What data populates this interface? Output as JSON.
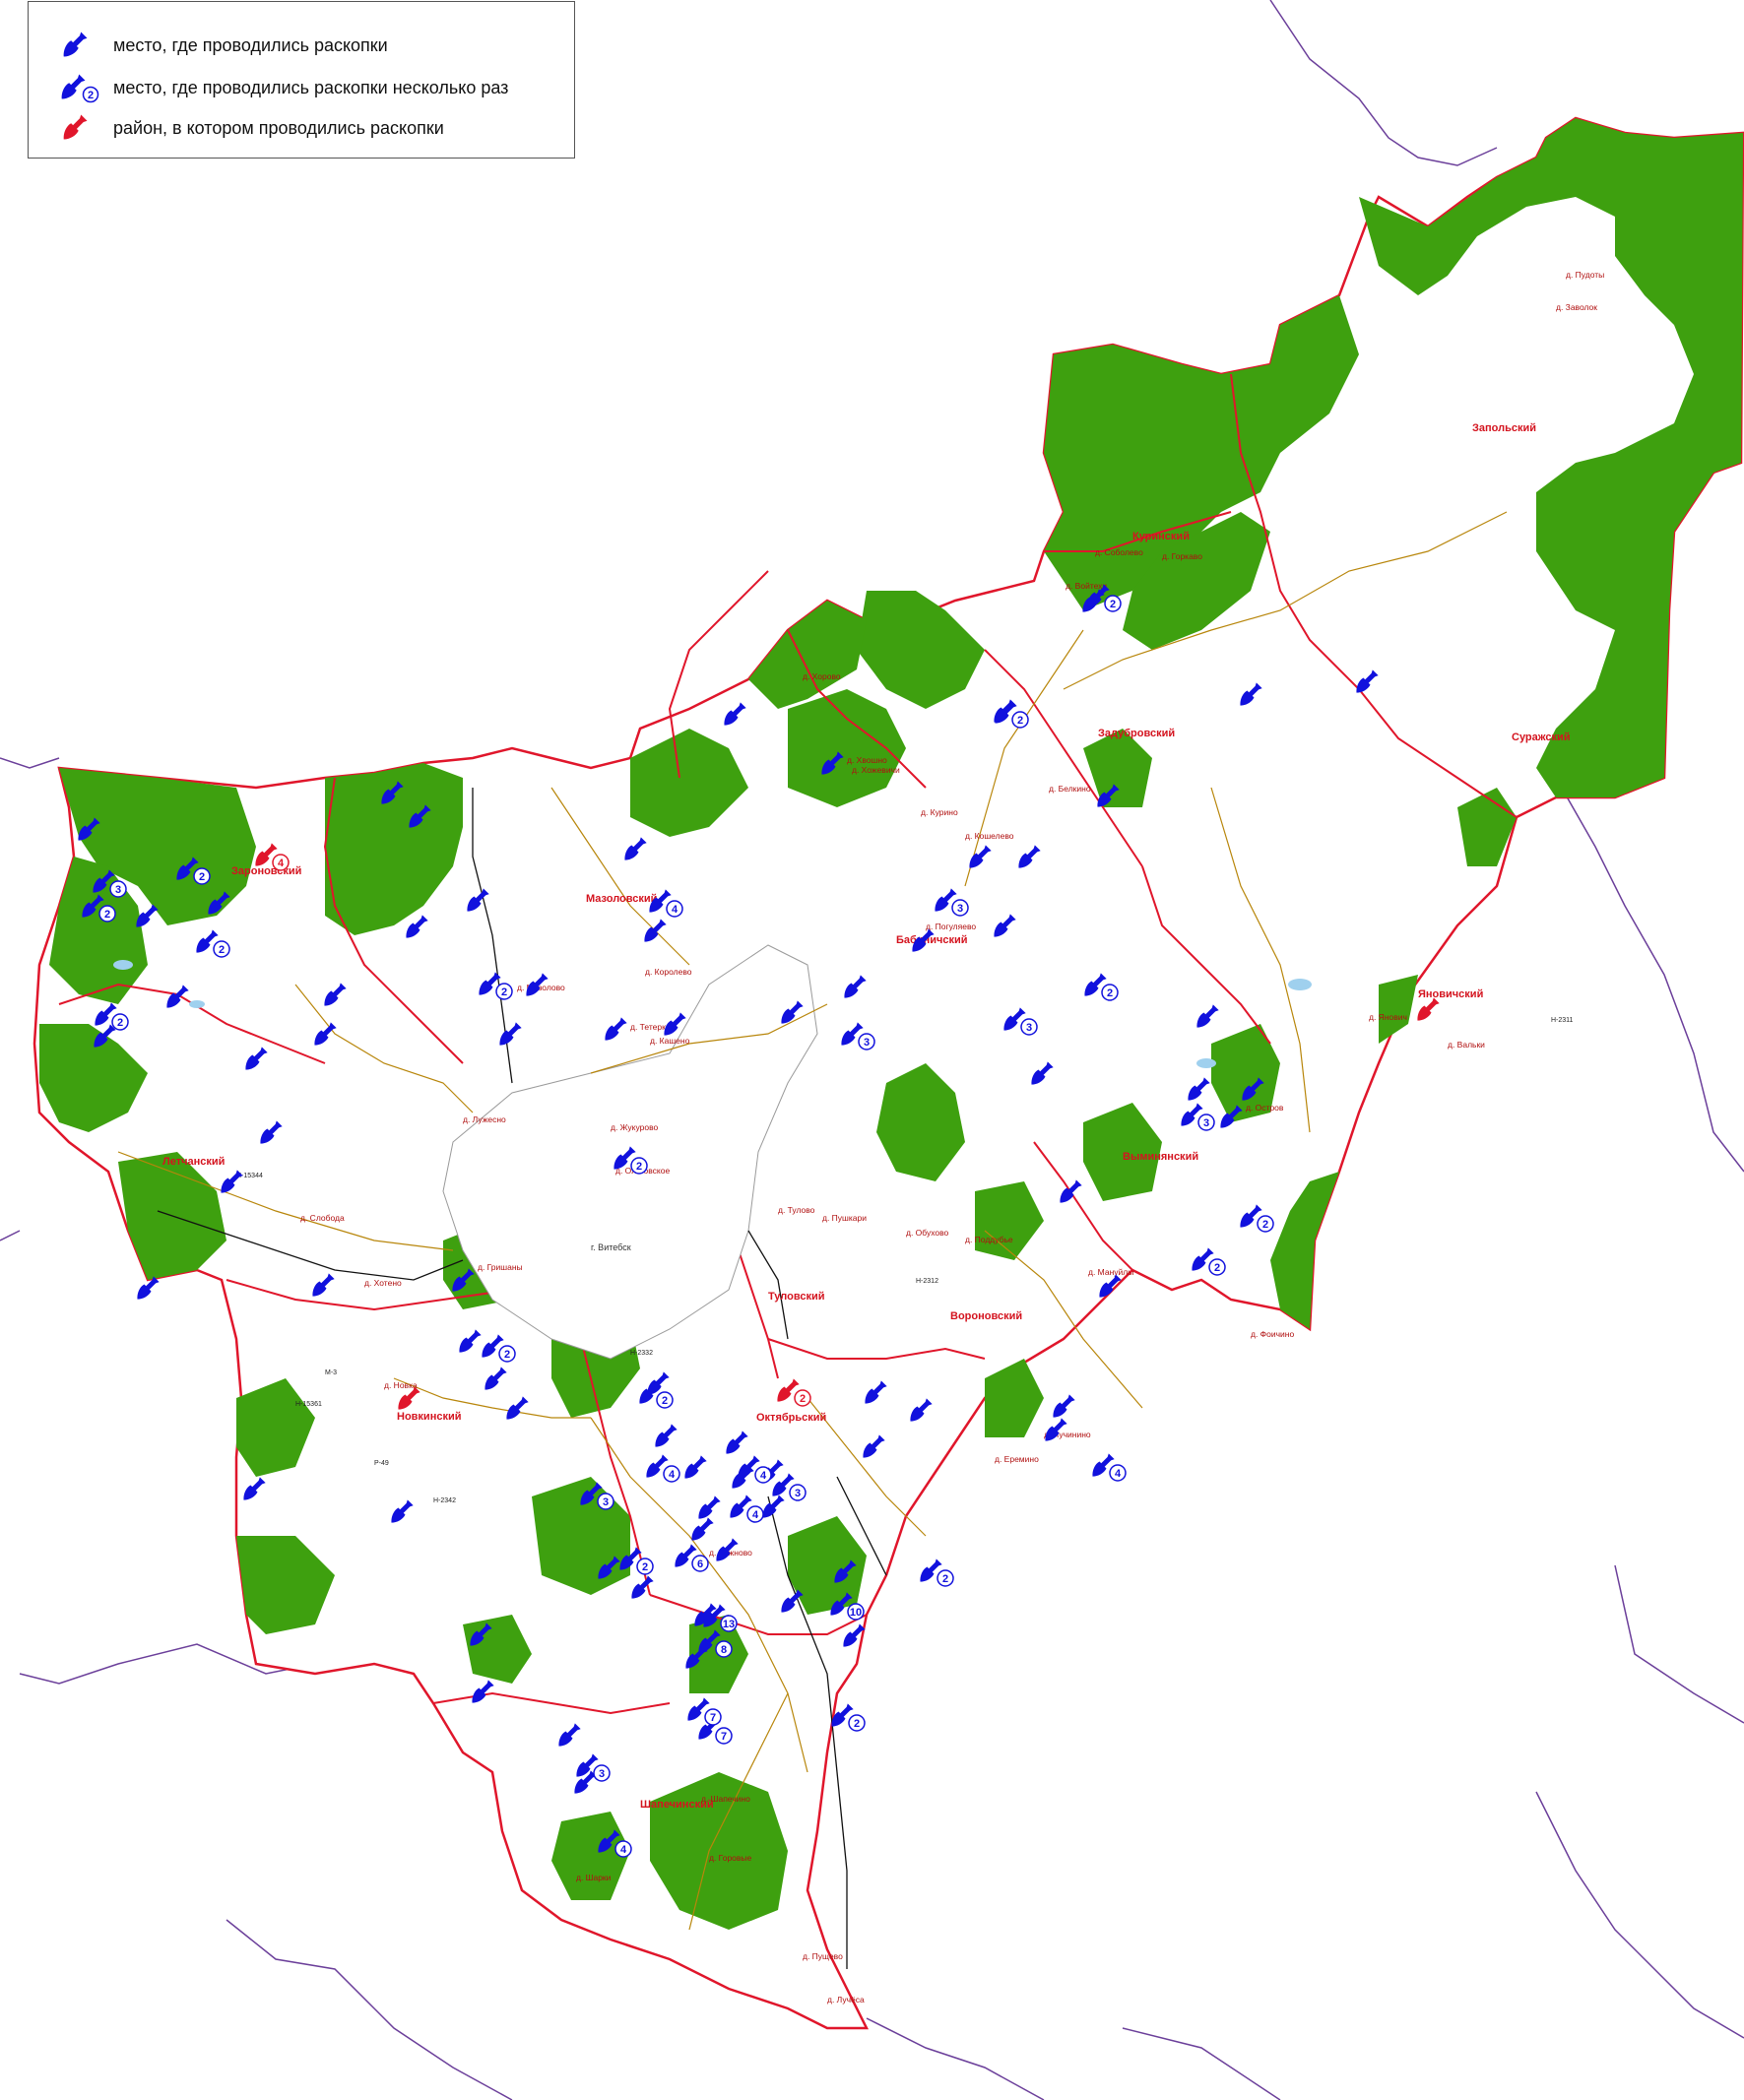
{
  "legend": {
    "items": [
      {
        "label": "место, где проводились раскопки",
        "kind": "single",
        "color": "#1111dd"
      },
      {
        "label": "место, где проводились раскопки несколько раз",
        "kind": "multiple",
        "color": "#1111dd",
        "badge": "2"
      },
      {
        "label": "район, в котором проводились раскопки",
        "kind": "district",
        "color": "#e0162b"
      }
    ]
  },
  "colors": {
    "forest": "#3ea00f",
    "open_land": "#ffffff",
    "district_border": "#e0162b",
    "region_border": "#6b3f9a",
    "dig_site": "#1111dd",
    "district_marker": "#e0162b",
    "road": "#b8860b",
    "railway": "#111111"
  },
  "districts": [
    "Куринский",
    "Запольский",
    "Задубровский",
    "Суражский",
    "Заронoвский",
    "Мазоловский",
    "Бабиничский",
    "Яновичский",
    "Летчанский",
    "Выминянский",
    "Туловский",
    "Вороновский",
    "Новкинский",
    "Октябрьский",
    "Шапечинский"
  ],
  "city": "г. Витебск",
  "places": [
    "д. Войтехи",
    "д. Соболево",
    "д. Горкаво",
    "Запольский",
    "д. Пудоты",
    "д. Заволок",
    "д. Хорово",
    "д. Курино",
    "д. Хвошно",
    "д. Хожевичи",
    "д. Белкино",
    "д. Кошелево",
    "д. Мазолово",
    "д. Королево",
    "д. Тетерки",
    "д. Кашено",
    "д. Лужесно",
    "д. Погуляево",
    "д. Шапечино",
    "д. Горовые",
    "д. Шарки",
    "д. Лучёса",
    "д. Пущево",
    "д. Остров",
    "д. Янович",
    "д. Вальки",
    "д. Фоичино",
    "д. Мануйлы",
    "д. Лучинино",
    "д. Еремино",
    "д. Новка",
    "д. Слобода",
    "д. Зарожье",
    "д. Рожново",
    "д. Гришаны",
    "д. Хотено",
    "д. Ольговское",
    "д. Жукурово",
    "д. Тулово",
    "д. Пушкари",
    "д. Обухово",
    "д. Поддубье"
  ],
  "roads": [
    "Н-2332",
    "Н-15361",
    "Н-2312",
    "Н-15344",
    "Н-2311",
    "М-3",
    "Р-49",
    "Н-2342"
  ],
  "dig_sites_single_count": 74,
  "dig_sites_multi": [
    {
      "count": 2
    },
    {
      "count": 2
    },
    {
      "count": 3
    },
    {
      "count": 3
    },
    {
      "count": 2
    },
    {
      "count": 3
    },
    {
      "count": 4
    },
    {
      "count": 2
    },
    {
      "count": 2
    },
    {
      "count": 2
    },
    {
      "count": 2
    },
    {
      "count": 3
    },
    {
      "count": 2
    },
    {
      "count": 2
    },
    {
      "count": 2
    },
    {
      "count": 4
    },
    {
      "count": 3
    },
    {
      "count": 2
    },
    {
      "count": 3
    },
    {
      "count": 4
    },
    {
      "count": 4
    },
    {
      "count": 2
    },
    {
      "count": 6
    },
    {
      "count": 7
    },
    {
      "count": 8
    },
    {
      "count": 13
    },
    {
      "count": 10
    },
    {
      "count": 7
    },
    {
      "count": 2
    },
    {
      "count": 3
    },
    {
      "count": 4
    },
    {
      "count": 4
    },
    {
      "count": 2
    },
    {
      "count": 2
    },
    {
      "count": 2
    },
    {
      "count": 3
    }
  ],
  "district_markers": [
    {
      "count": "4"
    },
    {
      "count": "2"
    },
    {
      "count": ""
    },
    {
      "count": ""
    }
  ]
}
